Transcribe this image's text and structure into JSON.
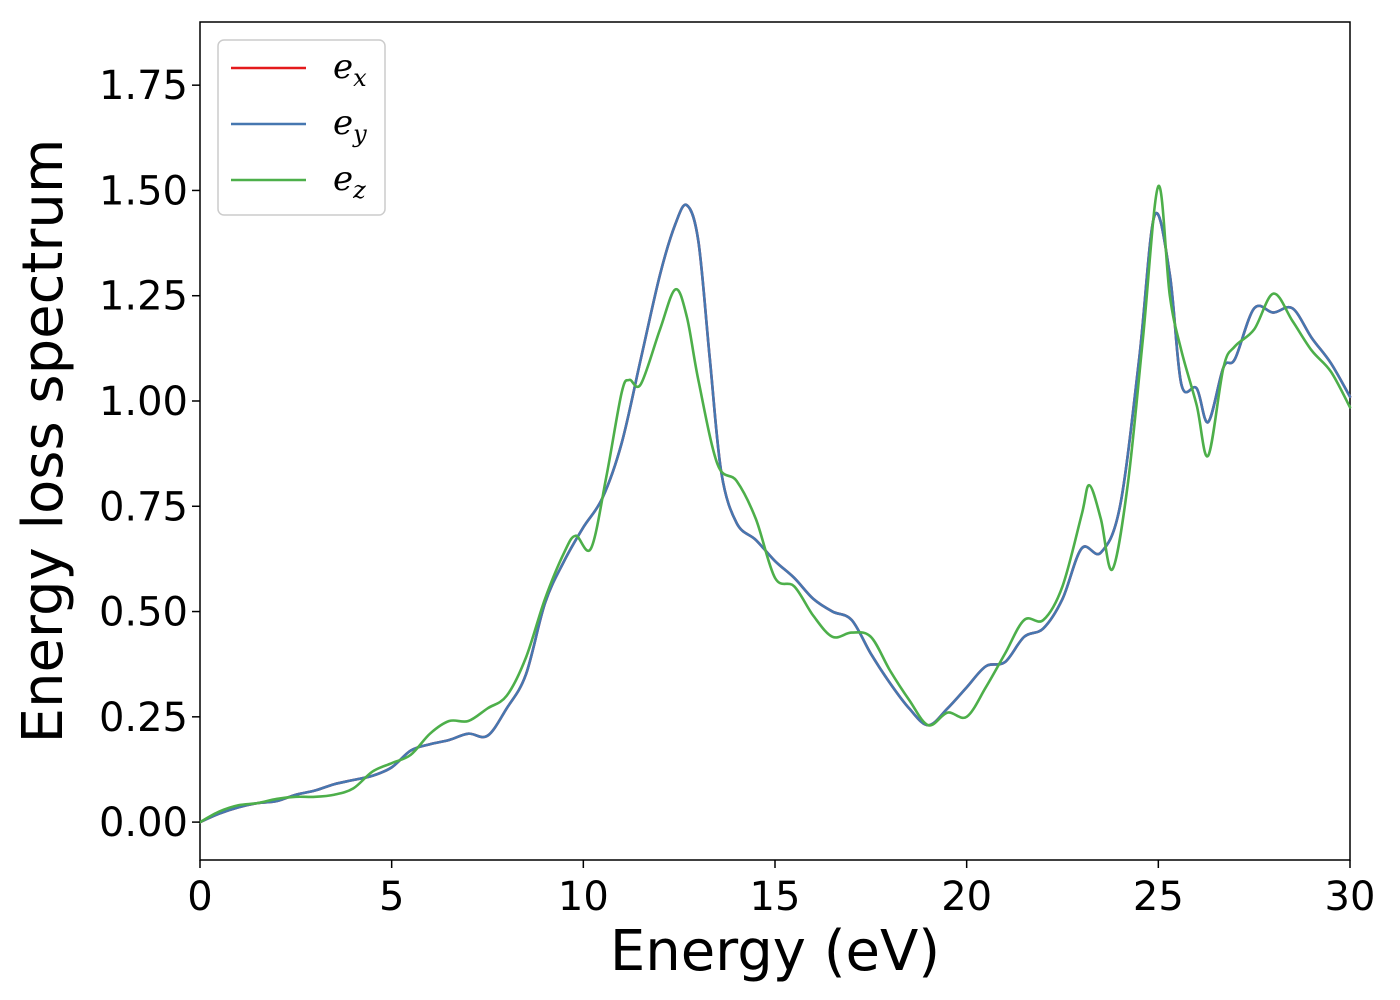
{
  "chart_data": {
    "type": "line",
    "xlabel": "Energy (eV)",
    "ylabel": "Energy loss spectrum",
    "xlim": [
      0,
      30
    ],
    "ylim": [
      -0.09,
      1.9
    ],
    "xticks": [
      0,
      5,
      10,
      15,
      20,
      25,
      30
    ],
    "xtick_labels": [
      "0",
      "5",
      "10",
      "15",
      "20",
      "25",
      "30"
    ],
    "yticks": [
      0.0,
      0.25,
      0.5,
      0.75,
      1.0,
      1.25,
      1.5,
      1.75
    ],
    "ytick_labels": [
      "0.00",
      "0.25",
      "0.50",
      "0.75",
      "1.00",
      "1.25",
      "1.50",
      "1.75"
    ],
    "grid": false,
    "legend_position": "top-left",
    "series": [
      {
        "name": "e",
        "subscript": "x",
        "color": "#e41a1c",
        "x": [
          0,
          0.5,
          1,
          1.5,
          2,
          2.5,
          3,
          3.5,
          4,
          4.5,
          5,
          5.5,
          6,
          6.5,
          7,
          7.5,
          8,
          8.5,
          9,
          9.5,
          10,
          10.5,
          11,
          11.5,
          12,
          12.4,
          12.7,
          13,
          13.3,
          13.6,
          14,
          14.5,
          15,
          15.5,
          16,
          16.5,
          17,
          17.5,
          18,
          18.5,
          19,
          19.5,
          20,
          20.5,
          21,
          21.5,
          22,
          22.5,
          23,
          23.5,
          24,
          24.5,
          24.9,
          25.3,
          25.6,
          26,
          26.3,
          26.7,
          27,
          27.5,
          28,
          28.5,
          29,
          29.5,
          30
        ],
        "y": [
          0,
          0.02,
          0.035,
          0.045,
          0.05,
          0.065,
          0.075,
          0.09,
          0.1,
          0.11,
          0.13,
          0.17,
          0.185,
          0.195,
          0.21,
          0.205,
          0.27,
          0.35,
          0.52,
          0.62,
          0.7,
          0.77,
          0.9,
          1.1,
          1.3,
          1.42,
          1.465,
          1.38,
          1.1,
          0.83,
          0.71,
          0.67,
          0.62,
          0.58,
          0.53,
          0.5,
          0.48,
          0.4,
          0.33,
          0.27,
          0.23,
          0.27,
          0.32,
          0.37,
          0.38,
          0.44,
          0.46,
          0.53,
          0.65,
          0.64,
          0.75,
          1.1,
          1.44,
          1.3,
          1.04,
          1.03,
          0.95,
          1.08,
          1.1,
          1.22,
          1.21,
          1.22,
          1.15,
          1.09,
          1.01
        ]
      },
      {
        "name": "e",
        "subscript": "y",
        "color": "#4677b0",
        "x": [
          0,
          0.5,
          1,
          1.5,
          2,
          2.5,
          3,
          3.5,
          4,
          4.5,
          5,
          5.5,
          6,
          6.5,
          7,
          7.5,
          8,
          8.5,
          9,
          9.5,
          10,
          10.5,
          11,
          11.5,
          12,
          12.4,
          12.7,
          13,
          13.3,
          13.6,
          14,
          14.5,
          15,
          15.5,
          16,
          16.5,
          17,
          17.5,
          18,
          18.5,
          19,
          19.5,
          20,
          20.5,
          21,
          21.5,
          22,
          22.5,
          23,
          23.5,
          24,
          24.5,
          24.9,
          25.3,
          25.6,
          26,
          26.3,
          26.7,
          27,
          27.5,
          28,
          28.5,
          29,
          29.5,
          30
        ],
        "y": [
          0,
          0.02,
          0.035,
          0.045,
          0.05,
          0.065,
          0.075,
          0.09,
          0.1,
          0.11,
          0.13,
          0.17,
          0.185,
          0.195,
          0.21,
          0.205,
          0.27,
          0.35,
          0.52,
          0.62,
          0.7,
          0.77,
          0.9,
          1.1,
          1.3,
          1.42,
          1.465,
          1.38,
          1.1,
          0.83,
          0.71,
          0.67,
          0.62,
          0.58,
          0.53,
          0.5,
          0.48,
          0.4,
          0.33,
          0.27,
          0.23,
          0.27,
          0.32,
          0.37,
          0.38,
          0.44,
          0.46,
          0.53,
          0.65,
          0.64,
          0.75,
          1.1,
          1.44,
          1.3,
          1.04,
          1.03,
          0.95,
          1.08,
          1.1,
          1.22,
          1.21,
          1.22,
          1.15,
          1.09,
          1.01
        ]
      },
      {
        "name": "e",
        "subscript": "z",
        "color": "#4daf4a",
        "x": [
          0,
          0.5,
          1,
          1.5,
          2,
          2.5,
          3,
          3.5,
          4,
          4.5,
          5,
          5.5,
          6,
          6.5,
          7,
          7.5,
          8,
          8.5,
          9,
          9.5,
          9.8,
          10.2,
          10.6,
          11,
          11.2,
          11.5,
          12,
          12.4,
          12.7,
          13,
          13.5,
          14,
          14.5,
          15,
          15.5,
          16,
          16.5,
          17,
          17.5,
          18,
          18.5,
          19,
          19.5,
          20,
          20.5,
          21,
          21.5,
          22,
          22.5,
          23,
          23.2,
          23.5,
          23.8,
          24.2,
          24.6,
          25,
          25.3,
          25.6,
          26,
          26.3,
          26.7,
          27,
          27.5,
          28,
          28.5,
          29,
          29.5,
          30
        ],
        "y": [
          0,
          0.025,
          0.04,
          0.045,
          0.055,
          0.06,
          0.06,
          0.065,
          0.08,
          0.12,
          0.14,
          0.16,
          0.21,
          0.24,
          0.24,
          0.27,
          0.3,
          0.39,
          0.53,
          0.64,
          0.68,
          0.65,
          0.82,
          1.02,
          1.05,
          1.04,
          1.17,
          1.265,
          1.2,
          1.05,
          0.85,
          0.81,
          0.72,
          0.58,
          0.56,
          0.49,
          0.44,
          0.45,
          0.44,
          0.36,
          0.29,
          0.23,
          0.26,
          0.25,
          0.32,
          0.4,
          0.48,
          0.48,
          0.56,
          0.73,
          0.8,
          0.72,
          0.6,
          0.8,
          1.15,
          1.51,
          1.25,
          1.12,
          0.99,
          0.87,
          1.08,
          1.13,
          1.17,
          1.255,
          1.19,
          1.12,
          1.07,
          0.985
        ]
      }
    ]
  }
}
